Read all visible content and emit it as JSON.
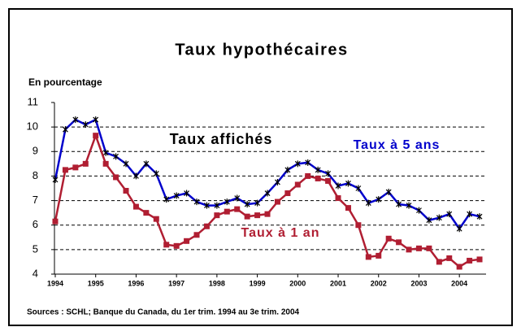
{
  "chart_data": {
    "type": "line",
    "title": "Taux hypothécaires",
    "y_label": "En pourcentage",
    "source": "Sources : SCHL; Banque du Canada, du 1er trim. 1994 au 3e trim. 2004",
    "annotation": "Taux affichés",
    "x": [
      1994,
      1994.25,
      1994.5,
      1994.75,
      1995,
      1995.25,
      1995.5,
      1995.75,
      1996,
      1996.25,
      1996.5,
      1996.75,
      1997,
      1997.25,
      1997.5,
      1997.75,
      1998,
      1998.25,
      1998.5,
      1998.75,
      1999,
      1999.25,
      1999.5,
      1999.75,
      2000,
      2000.25,
      2000.5,
      2000.75,
      2001,
      2001.25,
      2001.5,
      2001.75,
      2002,
      2002.25,
      2002.5,
      2002.75,
      2003,
      2003.25,
      2003.5,
      2003.75,
      2004,
      2004.25,
      2004.5
    ],
    "series": [
      {
        "name": "Taux à 5 ans",
        "color": "#0000cc",
        "marker": "star",
        "values": [
          7.85,
          9.9,
          10.3,
          10.1,
          10.3,
          8.95,
          8.8,
          8.5,
          8.0,
          8.5,
          8.1,
          7.05,
          7.2,
          7.3,
          6.95,
          6.8,
          6.8,
          6.95,
          7.1,
          6.85,
          6.9,
          7.3,
          7.75,
          8.25,
          8.5,
          8.55,
          8.25,
          8.1,
          7.6,
          7.7,
          7.5,
          6.9,
          7.05,
          7.35,
          6.85,
          6.8,
          6.6,
          6.2,
          6.3,
          6.45,
          5.85,
          6.45,
          6.35
        ]
      },
      {
        "name": "Taux à 1 an",
        "color": "#b01e32",
        "marker": "square",
        "values": [
          6.15,
          8.25,
          8.35,
          8.5,
          9.65,
          8.5,
          7.95,
          7.4,
          6.75,
          6.5,
          6.25,
          5.2,
          5.15,
          5.35,
          5.6,
          5.95,
          6.4,
          6.55,
          6.65,
          6.35,
          6.4,
          6.45,
          6.95,
          7.3,
          7.65,
          8.0,
          7.9,
          7.8,
          7.1,
          6.7,
          6.0,
          4.7,
          4.75,
          5.45,
          5.3,
          5.0,
          5.05,
          5.05,
          4.5,
          4.65,
          4.3,
          4.55,
          4.6
        ]
      }
    ],
    "xlim": [
      1993.98,
      2004.66
    ],
    "xticks": [
      1994,
      1995,
      1996,
      1997,
      1998,
      1999,
      2000,
      2001,
      2002,
      2003,
      2004
    ],
    "ylim": [
      4,
      11
    ],
    "yticks": [
      4,
      5,
      6,
      7,
      8,
      9,
      10,
      11
    ],
    "grid": true
  }
}
